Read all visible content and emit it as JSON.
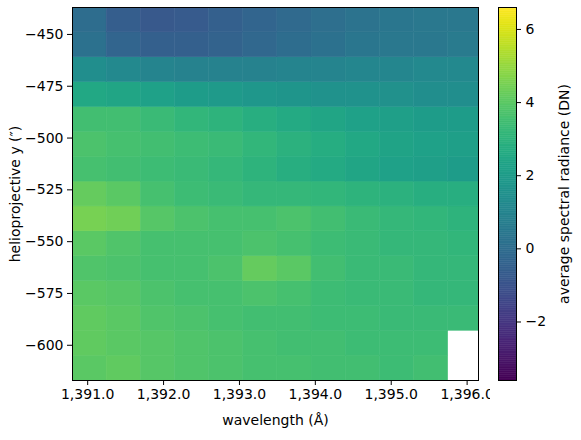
{
  "chart_data": {
    "type": "heatmap",
    "x_label": "wavelength (Å)",
    "y_label": "helioprojective y (″)",
    "color": "viridis",
    "x_edges": [
      1390.8,
      1391.25,
      1391.7,
      1392.15,
      1392.6,
      1393.05,
      1393.5,
      1393.95,
      1394.4,
      1394.85,
      1395.3,
      1395.75,
      1396.2
    ],
    "y_edges": [
      -617,
      -605,
      -593,
      -581,
      -569,
      -557,
      -545,
      -533,
      -521,
      -509,
      -497,
      -485,
      -473,
      -461,
      -449,
      -437
    ],
    "values": [
      [
        4.0,
        4.1,
        3.9,
        3.8,
        3.7,
        3.6,
        3.6,
        3.5,
        3.5,
        3.4,
        3.5,
        null
      ],
      [
        4.1,
        4.0,
        3.9,
        3.8,
        3.7,
        3.6,
        3.5,
        3.5,
        3.4,
        3.4,
        3.4,
        null
      ],
      [
        4.1,
        4.0,
        3.8,
        3.7,
        3.6,
        3.5,
        3.5,
        3.4,
        3.4,
        3.3,
        3.3,
        3.3
      ],
      [
        4.0,
        3.9,
        3.7,
        3.6,
        3.6,
        3.7,
        3.6,
        3.4,
        3.3,
        3.3,
        3.2,
        3.2
      ],
      [
        3.8,
        3.7,
        3.6,
        3.6,
        3.7,
        4.2,
        4.0,
        3.5,
        3.3,
        3.3,
        3.2,
        3.2
      ],
      [
        4.0,
        3.8,
        3.6,
        3.6,
        3.6,
        3.7,
        3.6,
        3.4,
        3.3,
        3.2,
        3.2,
        3.1
      ],
      [
        4.5,
        4.4,
        3.9,
        3.7,
        3.6,
        3.6,
        3.7,
        3.5,
        3.3,
        3.2,
        3.1,
        3.0
      ],
      [
        4.2,
        4.0,
        3.6,
        3.4,
        3.3,
        3.2,
        3.2,
        3.1,
        3.0,
        2.9,
        2.8,
        2.8
      ],
      [
        3.6,
        3.5,
        3.4,
        3.3,
        3.2,
        3.0,
        2.8,
        2.6,
        2.4,
        2.2,
        2.1,
        2.0
      ],
      [
        3.7,
        3.6,
        3.5,
        3.4,
        3.3,
        3.1,
        2.9,
        2.7,
        2.5,
        2.3,
        2.2,
        2.1
      ],
      [
        3.5,
        3.5,
        3.3,
        3.1,
        3.0,
        2.8,
        2.6,
        2.4,
        2.2,
        2.1,
        2.0,
        2.0
      ],
      [
        2.5,
        2.4,
        2.2,
        2.0,
        1.9,
        1.8,
        1.7,
        1.6,
        1.6,
        1.5,
        1.4,
        1.4
      ],
      [
        1.4,
        1.2,
        1.0,
        0.9,
        0.9,
        0.9,
        1.0,
        1.0,
        1.1,
        1.1,
        1.2,
        1.2
      ],
      [
        0.2,
        -0.3,
        -0.5,
        -0.5,
        -0.4,
        -0.2,
        0.0,
        0.2,
        0.4,
        0.5,
        0.5,
        0.6
      ],
      [
        0.0,
        -0.6,
        -0.8,
        -0.7,
        -0.5,
        -0.3,
        -0.1,
        0.1,
        0.3,
        0.4,
        0.5,
        0.5
      ]
    ],
    "xlim": [
      1390.8,
      1396.15
    ],
    "ylim": [
      -617,
      -437
    ],
    "xticks": [
      1391,
      1392,
      1393,
      1394,
      1395,
      1396
    ],
    "yticks": [
      -600,
      -575,
      -550,
      -525,
      -500,
      -475,
      -450
    ],
    "colorbar": {
      "label": "average spectral radiance (DN)",
      "range": [
        -3.6,
        6.6
      ],
      "ticks": [
        -2,
        0,
        2,
        4,
        6
      ]
    }
  }
}
